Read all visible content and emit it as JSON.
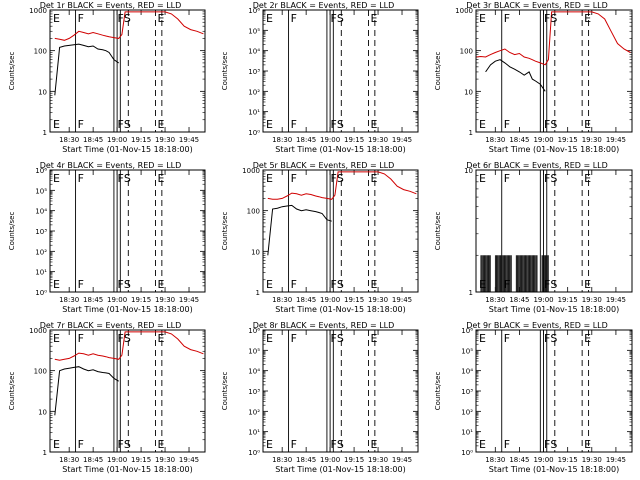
{
  "figure": {
    "xlabel": "Start Time (01-Nov-15 18:18:00)",
    "ylabel": "Counts/sec",
    "x_tick_labels": [
      "18:30",
      "18:45",
      "19:00",
      "19:15",
      "19:30",
      "19:45"
    ],
    "x_tick_minutes": [
      12,
      27,
      42,
      57,
      72,
      87
    ],
    "x_range_minutes": [
      0,
      97
    ],
    "colors": {
      "events": "#000000",
      "lld": "#d00000",
      "axes": "#000000",
      "background": "#ffffff"
    }
  },
  "chart_data": [
    {
      "type": "line",
      "title": "Det 1r BLACK = Events, RED = LLD",
      "yscale": "log",
      "ylim": [
        1,
        1000
      ],
      "y_tick_labels": [
        "1",
        "10",
        "100",
        "1000"
      ],
      "y_tick_values": [
        1,
        10,
        100,
        1000
      ],
      "x_minutes": [
        0,
        3,
        6,
        9,
        12,
        15,
        18,
        21,
        24,
        27,
        30,
        33,
        35,
        37,
        40,
        43,
        45,
        47,
        50,
        53,
        56,
        58,
        60,
        62,
        68,
        72,
        76,
        80,
        84,
        88,
        92,
        96
      ],
      "series": [
        {
          "name": "Events",
          "color": "#000000",
          "values": [
            null,
            8,
            120,
            130,
            135,
            140,
            145,
            135,
            125,
            130,
            110,
            105,
            100,
            90,
            60,
            50,
            null,
            null,
            null,
            null,
            null,
            null,
            null,
            null,
            null,
            null,
            null,
            null,
            null,
            null,
            null,
            null
          ]
        },
        {
          "name": "LLD",
          "color": "#d00000",
          "values": [
            null,
            200,
            190,
            180,
            200,
            240,
            300,
            280,
            260,
            280,
            260,
            240,
            230,
            220,
            210,
            200,
            250,
            900,
            900,
            900,
            900,
            900,
            900,
            900,
            900,
            900,
            800,
            600,
            400,
            330,
            300,
            260
          ]
        }
      ],
      "markers": [
        {
          "label": "F",
          "minute": 16
        },
        {
          "label": "F",
          "minute": 41
        },
        {
          "label": "S",
          "minute": 45
        },
        {
          "label": "E",
          "minute": 66
        }
      ],
      "corner_label": "E",
      "vlines": [
        {
          "minute": 16,
          "style": "solid"
        },
        {
          "minute": 40,
          "style": "solid"
        },
        {
          "minute": 42,
          "style": "solid"
        },
        {
          "minute": 44,
          "style": "solid"
        },
        {
          "minute": 49,
          "style": "dashed"
        },
        {
          "minute": 66,
          "style": "dashed"
        },
        {
          "minute": 70,
          "style": "dashed"
        }
      ]
    },
    {
      "type": "line",
      "title": "Det 2r BLACK = Events, RED = LLD",
      "yscale": "log",
      "ylim": [
        1,
        1000000
      ],
      "y_tick_labels": [
        "10⁰",
        "10¹",
        "10²",
        "10³",
        "10⁴",
        "10⁵",
        "10⁶"
      ],
      "y_tick_values": [
        1,
        10,
        100,
        1000,
        10000,
        100000,
        1000000
      ],
      "x_minutes": [],
      "series": [],
      "markers": [
        {
          "label": "F",
          "minute": 16
        },
        {
          "label": "F",
          "minute": 41
        },
        {
          "label": "S",
          "minute": 45
        },
        {
          "label": "E",
          "minute": 66
        }
      ],
      "corner_label": "E",
      "vlines": [
        {
          "minute": 16,
          "style": "solid"
        },
        {
          "minute": 40,
          "style": "solid"
        },
        {
          "minute": 42,
          "style": "solid"
        },
        {
          "minute": 44,
          "style": "solid"
        },
        {
          "minute": 49,
          "style": "dashed"
        },
        {
          "minute": 66,
          "style": "dashed"
        },
        {
          "minute": 70,
          "style": "dashed"
        }
      ]
    },
    {
      "type": "line",
      "title": "Det 3r BLACK = Events, RED = LLD",
      "yscale": "log",
      "ylim": [
        1,
        1000
      ],
      "y_tick_labels": [
        "1",
        "10",
        "100",
        "1000"
      ],
      "y_tick_values": [
        1,
        10,
        100,
        1000
      ],
      "x_minutes": [
        0,
        3,
        6,
        9,
        12,
        15,
        18,
        21,
        24,
        27,
        30,
        33,
        35,
        37,
        40,
        43,
        45,
        47,
        50,
        53,
        56,
        58,
        60,
        62,
        68,
        72,
        76,
        80,
        84,
        88,
        92,
        96
      ],
      "series": [
        {
          "name": "Events",
          "color": "#000000",
          "values": [
            null,
            null,
            30,
            45,
            55,
            60,
            50,
            40,
            35,
            30,
            25,
            30,
            20,
            18,
            15,
            10,
            null,
            null,
            null,
            null,
            null,
            null,
            null,
            null,
            null,
            null,
            null,
            null,
            null,
            null,
            null,
            null
          ]
        },
        {
          "name": "LLD",
          "color": "#d00000",
          "values": [
            70,
            72,
            70,
            80,
            90,
            100,
            110,
            90,
            80,
            85,
            70,
            65,
            60,
            55,
            50,
            45,
            60,
            900,
            900,
            900,
            900,
            900,
            900,
            900,
            900,
            900,
            800,
            600,
            300,
            150,
            110,
            90
          ]
        }
      ],
      "markers": [
        {
          "label": "F",
          "minute": 16
        },
        {
          "label": "F",
          "minute": 41
        },
        {
          "label": "S",
          "minute": 45
        },
        {
          "label": "E",
          "minute": 66
        }
      ],
      "corner_label": "E",
      "vlines": [
        {
          "minute": 16,
          "style": "solid"
        },
        {
          "minute": 40,
          "style": "solid"
        },
        {
          "minute": 42,
          "style": "solid"
        },
        {
          "minute": 44,
          "style": "solid"
        },
        {
          "minute": 49,
          "style": "dashed"
        },
        {
          "minute": 66,
          "style": "dashed"
        },
        {
          "minute": 70,
          "style": "dashed"
        }
      ]
    },
    {
      "type": "line",
      "title": "Det 4r BLACK = Events, RED = LLD",
      "yscale": "log",
      "ylim": [
        1,
        1000000
      ],
      "y_tick_labels": [
        "10⁰",
        "10¹",
        "10²",
        "10³",
        "10⁴",
        "10⁵",
        "10⁶"
      ],
      "y_tick_values": [
        1,
        10,
        100,
        1000,
        10000,
        100000,
        1000000
      ],
      "x_minutes": [],
      "series": [],
      "markers": [
        {
          "label": "F",
          "minute": 16
        },
        {
          "label": "F",
          "minute": 41
        },
        {
          "label": "S",
          "minute": 45
        },
        {
          "label": "E",
          "minute": 66
        }
      ],
      "corner_label": "E",
      "vlines": [
        {
          "minute": 16,
          "style": "solid"
        },
        {
          "minute": 40,
          "style": "solid"
        },
        {
          "minute": 42,
          "style": "solid"
        },
        {
          "minute": 44,
          "style": "solid"
        },
        {
          "minute": 49,
          "style": "dashed"
        },
        {
          "minute": 66,
          "style": "dashed"
        },
        {
          "minute": 70,
          "style": "dashed"
        }
      ]
    },
    {
      "type": "line",
      "title": "Det 5r BLACK = Events, RED = LLD",
      "yscale": "log",
      "ylim": [
        1,
        1000
      ],
      "y_tick_labels": [
        "1",
        "10",
        "100",
        "1000"
      ],
      "y_tick_values": [
        1,
        10,
        100,
        1000
      ],
      "x_minutes": [
        0,
        3,
        6,
        9,
        12,
        15,
        18,
        21,
        24,
        27,
        30,
        33,
        35,
        37,
        40,
        43,
        45,
        47,
        50,
        53,
        56,
        58,
        60,
        62,
        68,
        72,
        76,
        80,
        84,
        88,
        92,
        96
      ],
      "series": [
        {
          "name": "Events",
          "color": "#000000",
          "values": [
            null,
            8,
            110,
            115,
            125,
            130,
            135,
            110,
            100,
            105,
            100,
            95,
            90,
            85,
            60,
            55,
            null,
            null,
            null,
            null,
            null,
            null,
            null,
            null,
            null,
            null,
            null,
            null,
            null,
            null,
            null,
            null
          ]
        },
        {
          "name": "LLD",
          "color": "#d00000",
          "values": [
            null,
            200,
            190,
            190,
            200,
            230,
            270,
            260,
            240,
            260,
            250,
            230,
            220,
            210,
            200,
            190,
            240,
            900,
            900,
            900,
            900,
            900,
            900,
            900,
            900,
            900,
            800,
            600,
            400,
            330,
            300,
            260
          ]
        }
      ],
      "markers": [
        {
          "label": "F",
          "minute": 16
        },
        {
          "label": "F",
          "minute": 41
        },
        {
          "label": "S",
          "minute": 45
        },
        {
          "label": "E",
          "minute": 66
        }
      ],
      "corner_label": "E",
      "vlines": [
        {
          "minute": 16,
          "style": "solid"
        },
        {
          "minute": 40,
          "style": "solid"
        },
        {
          "minute": 42,
          "style": "solid"
        },
        {
          "minute": 44,
          "style": "solid"
        },
        {
          "minute": 49,
          "style": "dashed"
        },
        {
          "minute": 66,
          "style": "dashed"
        },
        {
          "minute": 70,
          "style": "dashed"
        }
      ]
    },
    {
      "type": "line",
      "title": "Det 6r BLACK = Events, RED = LLD",
      "yscale": "log",
      "ylim": [
        1,
        10
      ],
      "y_tick_labels": [
        "1",
        "10"
      ],
      "y_tick_values": [
        1,
        10
      ],
      "x_minutes": [],
      "series": [],
      "spikes": {
        "color": "#000000",
        "from_value": 1,
        "to_value": 2,
        "segments": [
          [
            3,
            9
          ],
          [
            12,
            22
          ],
          [
            25,
            38
          ],
          [
            41,
            45
          ]
        ]
      },
      "markers": [
        {
          "label": "F",
          "minute": 16
        },
        {
          "label": "F",
          "minute": 41
        },
        {
          "label": "S",
          "minute": 45
        },
        {
          "label": "E",
          "minute": 66
        }
      ],
      "corner_label": "E",
      "vlines": [
        {
          "minute": 16,
          "style": "solid"
        },
        {
          "minute": 40,
          "style": "solid"
        },
        {
          "minute": 42,
          "style": "solid"
        },
        {
          "minute": 44,
          "style": "solid"
        },
        {
          "minute": 49,
          "style": "dashed"
        },
        {
          "minute": 66,
          "style": "dashed"
        },
        {
          "minute": 70,
          "style": "dashed"
        }
      ]
    },
    {
      "type": "line",
      "title": "Det 7r BLACK = Events, RED = LLD",
      "yscale": "log",
      "ylim": [
        1,
        1000
      ],
      "y_tick_labels": [
        "1",
        "10",
        "100",
        "1000"
      ],
      "y_tick_values": [
        1,
        10,
        100,
        1000
      ],
      "x_minutes": [
        0,
        3,
        6,
        9,
        12,
        15,
        18,
        21,
        24,
        27,
        30,
        33,
        35,
        37,
        40,
        43,
        45,
        47,
        50,
        53,
        56,
        58,
        60,
        62,
        68,
        72,
        76,
        80,
        84,
        88,
        92,
        96
      ],
      "series": [
        {
          "name": "Events",
          "color": "#000000",
          "values": [
            null,
            8,
            100,
            110,
            115,
            120,
            125,
            110,
            100,
            105,
            95,
            90,
            88,
            85,
            65,
            55,
            null,
            null,
            null,
            null,
            null,
            null,
            null,
            null,
            null,
            null,
            null,
            null,
            null,
            null,
            null,
            null
          ]
        },
        {
          "name": "LLD",
          "color": "#d00000",
          "values": [
            null,
            190,
            180,
            190,
            200,
            230,
            270,
            260,
            240,
            260,
            240,
            230,
            220,
            210,
            200,
            190,
            240,
            900,
            900,
            900,
            900,
            900,
            900,
            900,
            900,
            900,
            800,
            600,
            400,
            330,
            300,
            260
          ]
        }
      ],
      "markers": [
        {
          "label": "F",
          "minute": 16
        },
        {
          "label": "F",
          "minute": 41
        },
        {
          "label": "S",
          "minute": 45
        },
        {
          "label": "E",
          "minute": 66
        }
      ],
      "corner_label": "E",
      "vlines": [
        {
          "minute": 16,
          "style": "solid"
        },
        {
          "minute": 40,
          "style": "solid"
        },
        {
          "minute": 42,
          "style": "solid"
        },
        {
          "minute": 44,
          "style": "solid"
        },
        {
          "minute": 49,
          "style": "dashed"
        },
        {
          "minute": 66,
          "style": "dashed"
        },
        {
          "minute": 70,
          "style": "dashed"
        }
      ]
    },
    {
      "type": "line",
      "title": "Det 8r BLACK = Events, RED = LLD",
      "yscale": "log",
      "ylim": [
        1,
        1000000
      ],
      "y_tick_labels": [
        "10⁰",
        "10¹",
        "10²",
        "10³",
        "10⁴",
        "10⁵",
        "10⁶"
      ],
      "y_tick_values": [
        1,
        10,
        100,
        1000,
        10000,
        100000,
        1000000
      ],
      "x_minutes": [],
      "series": [],
      "markers": [
        {
          "label": "F",
          "minute": 16
        },
        {
          "label": "F",
          "minute": 41
        },
        {
          "label": "S",
          "minute": 45
        },
        {
          "label": "E",
          "minute": 66
        }
      ],
      "corner_label": "E",
      "vlines": [
        {
          "minute": 16,
          "style": "solid"
        },
        {
          "minute": 40,
          "style": "solid"
        },
        {
          "minute": 42,
          "style": "solid"
        },
        {
          "minute": 44,
          "style": "solid"
        },
        {
          "minute": 49,
          "style": "dashed"
        },
        {
          "minute": 66,
          "style": "dashed"
        },
        {
          "minute": 70,
          "style": "dashed"
        }
      ]
    },
    {
      "type": "line",
      "title": "Det 9r BLACK = Events, RED = LLD",
      "yscale": "log",
      "ylim": [
        1,
        1000000
      ],
      "y_tick_labels": [
        "10⁰",
        "10¹",
        "10²",
        "10³",
        "10⁴",
        "10⁵",
        "10⁶"
      ],
      "y_tick_values": [
        1,
        10,
        100,
        1000,
        10000,
        100000,
        1000000
      ],
      "x_minutes": [],
      "series": [],
      "markers": [
        {
          "label": "F",
          "minute": 16
        },
        {
          "label": "F",
          "minute": 41
        },
        {
          "label": "S",
          "minute": 45
        },
        {
          "label": "E",
          "minute": 66
        }
      ],
      "corner_label": "E",
      "vlines": [
        {
          "minute": 16,
          "style": "solid"
        },
        {
          "minute": 40,
          "style": "solid"
        },
        {
          "minute": 42,
          "style": "solid"
        },
        {
          "minute": 44,
          "style": "solid"
        },
        {
          "minute": 49,
          "style": "dashed"
        },
        {
          "minute": 66,
          "style": "dashed"
        },
        {
          "minute": 70,
          "style": "dashed"
        }
      ]
    }
  ]
}
